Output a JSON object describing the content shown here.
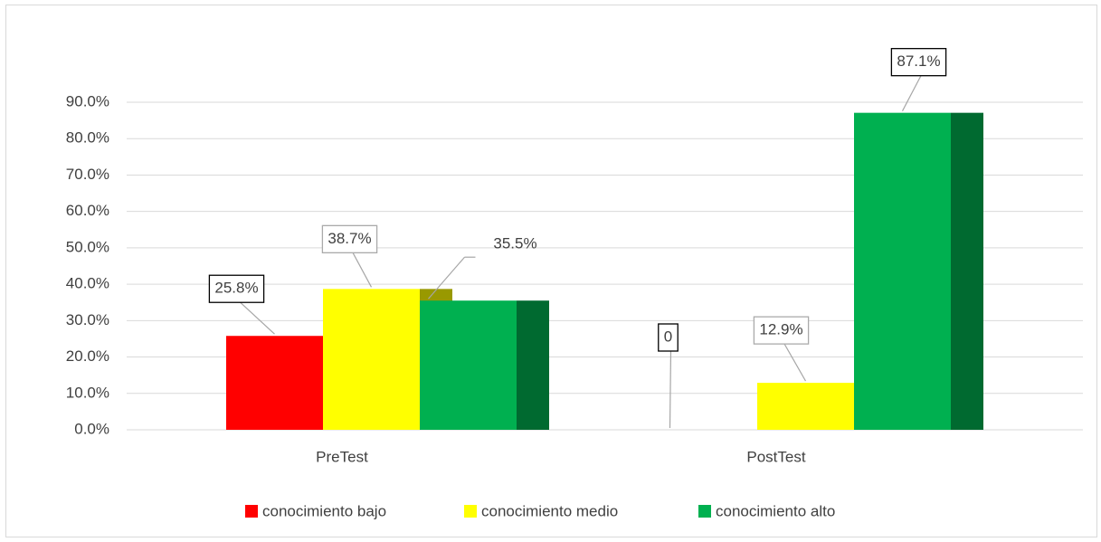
{
  "chart_data": {
    "type": "bar",
    "categories": [
      "PreTest",
      "PostTest"
    ],
    "series": [
      {
        "name": "conocimiento bajo",
        "color": "#ff0000",
        "values": [
          25.8,
          0
        ],
        "value_labels": [
          "25.8%",
          "0"
        ]
      },
      {
        "name": "conocimiento medio",
        "color": "#ffff00",
        "values": [
          38.7,
          12.9
        ],
        "value_labels": [
          "38.7%",
          "12.9%"
        ]
      },
      {
        "name": "conocimiento alto",
        "color": "#00b050",
        "values": [
          35.5,
          87.1
        ],
        "value_labels": [
          "35.5%",
          "87.1%"
        ]
      }
    ],
    "ylim": [
      0,
      90
    ],
    "yticks": [
      {
        "value": 0,
        "label": "0.0%"
      },
      {
        "value": 10,
        "label": "10.0%"
      },
      {
        "value": 20,
        "label": "20.0%"
      },
      {
        "value": 30,
        "label": "30.0%"
      },
      {
        "value": 40,
        "label": "40.0%"
      },
      {
        "value": 50,
        "label": "50.0%"
      },
      {
        "value": 60,
        "label": "60.0%"
      },
      {
        "value": 70,
        "label": "70.0%"
      },
      {
        "value": 80,
        "label": "80.0%"
      },
      {
        "value": 90,
        "label": "90.0%"
      }
    ],
    "grid": true,
    "legend": "bottom"
  }
}
